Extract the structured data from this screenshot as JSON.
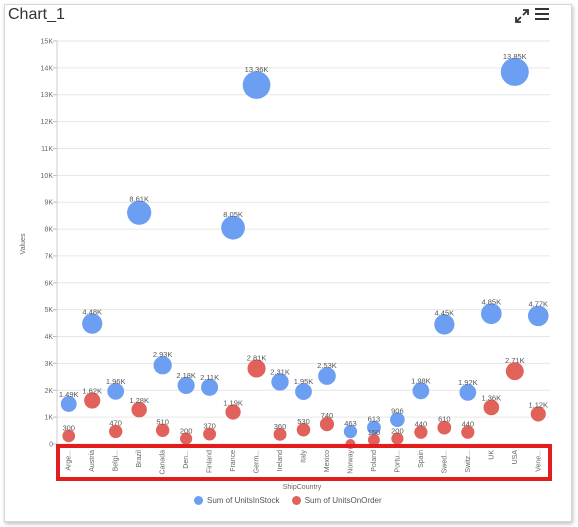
{
  "header": {
    "title": "Chart_1"
  },
  "icons": {
    "expand": "expand-icon",
    "menu": "hamburger-menu-icon"
  },
  "chart_data": {
    "type": "scatter",
    "xlabel": "ShipCountry",
    "ylabel": "Values",
    "ylim": [
      0,
      15000
    ],
    "yticks": [
      "0",
      "1K",
      "2K",
      "3K",
      "4K",
      "5K",
      "6K",
      "7K",
      "8K",
      "9K",
      "10K",
      "11K",
      "12K",
      "13K",
      "14K",
      "15K"
    ],
    "grid": true,
    "legend_position": "bottom",
    "categories": [
      "Arge...",
      "Austria",
      "Belgi...",
      "Brazil",
      "Canada",
      "Den...",
      "Finland",
      "France",
      "Germ...",
      "Ireland",
      "Italy",
      "Mexico",
      "Norway",
      "Poland",
      "Portu...",
      "Spain",
      "Swed...",
      "Switz...",
      "UK",
      "USA",
      "Vene..."
    ],
    "series": [
      {
        "name": "Sum of UnitsInStock",
        "color": "#6c9ef1",
        "values": [
          1490,
          4480,
          1960,
          8610,
          2930,
          2180,
          2110,
          8050,
          13360,
          2310,
          1950,
          2530,
          463,
          613,
          906,
          1980,
          4450,
          1920,
          4850,
          13850,
          4770
        ],
        "labels": [
          "1.49K",
          "4.48K",
          "1.96K",
          "8.61K",
          "2.93K",
          "2.18K",
          "2.11K",
          "8.05K",
          "13.36K",
          "2.31K",
          "1.95K",
          "2.53K",
          "463",
          "613",
          "906",
          "1.98K",
          "4.45K",
          "1.92K",
          "4.85K",
          "13.85K",
          "4.77K"
        ]
      },
      {
        "name": "Sum of UnitsOnOrder",
        "color": "#e0625a",
        "values": [
          300,
          1620,
          470,
          1280,
          510,
          200,
          370,
          1190,
          2810,
          360,
          530,
          740,
          0,
          150,
          200,
          440,
          610,
          440,
          1360,
          2710,
          1120
        ],
        "labels": [
          "300",
          "1.62K",
          "470",
          "1.28K",
          "510",
          "200",
          "370",
          "1.19K",
          "2.81K",
          "360",
          "530",
          "740",
          "",
          "150",
          "200",
          "440",
          "610",
          "440",
          "1.36K",
          "2.71K",
          "1.12K"
        ]
      }
    ]
  },
  "annotation": {
    "color": "#e31c1c"
  }
}
